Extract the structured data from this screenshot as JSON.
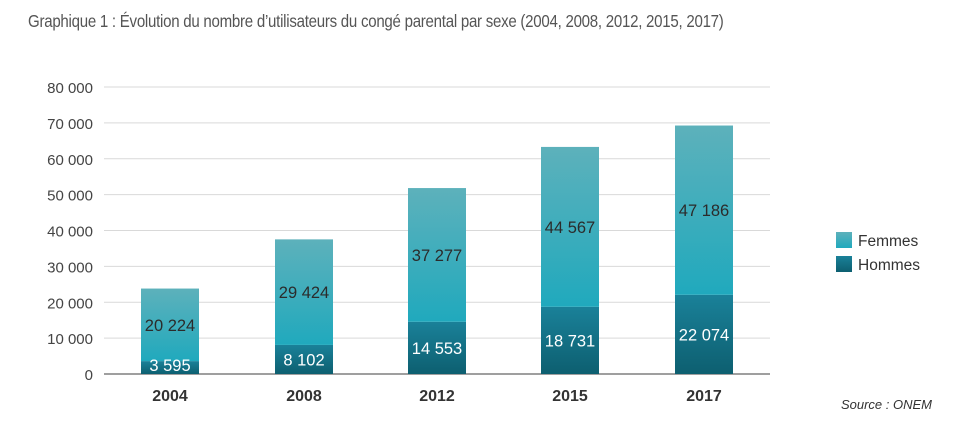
{
  "title": "Graphique 1 : Évolution du nombre d’utilisateurs du congé parental par sexe (2004, 2008, 2012, 2015, 2017)",
  "source": "Source : ONEM",
  "colors": {
    "femmes_top": "#5db1bb",
    "femmes_bottom": "#20a9bd",
    "hommes_top": "#1a8199",
    "hommes_bottom": "#0d5f70",
    "grid": "#d9d9d9",
    "axis": "#666666",
    "text_dark": "#333333",
    "text_white": "#ffffff"
  },
  "chart_data": {
    "type": "bar",
    "stacked": true,
    "categories": [
      "2004",
      "2008",
      "2012",
      "2015",
      "2017"
    ],
    "series": [
      {
        "name": "Hommes",
        "values": [
          3595,
          8102,
          14553,
          18731,
          22074
        ]
      },
      {
        "name": "Femmes",
        "values": [
          20224,
          29424,
          37277,
          44567,
          47186
        ]
      }
    ],
    "data_labels": {
      "Hommes": [
        "3 595",
        "8 102",
        "14 553",
        "18 731",
        "22 074"
      ],
      "Femmes": [
        "20 224",
        "29 424",
        "37 277",
        "44 567",
        "47 186"
      ]
    },
    "ylim": [
      0,
      80000
    ],
    "yticks": [
      0,
      10000,
      20000,
      30000,
      40000,
      50000,
      60000,
      70000,
      80000
    ],
    "ytick_labels": [
      "0",
      "10 000",
      "20 000",
      "30 000",
      "40 000",
      "50 000",
      "60 000",
      "70 000",
      "80 000"
    ],
    "legend": {
      "position": "right",
      "entries": [
        "Femmes",
        "Hommes"
      ]
    },
    "grid": true
  }
}
